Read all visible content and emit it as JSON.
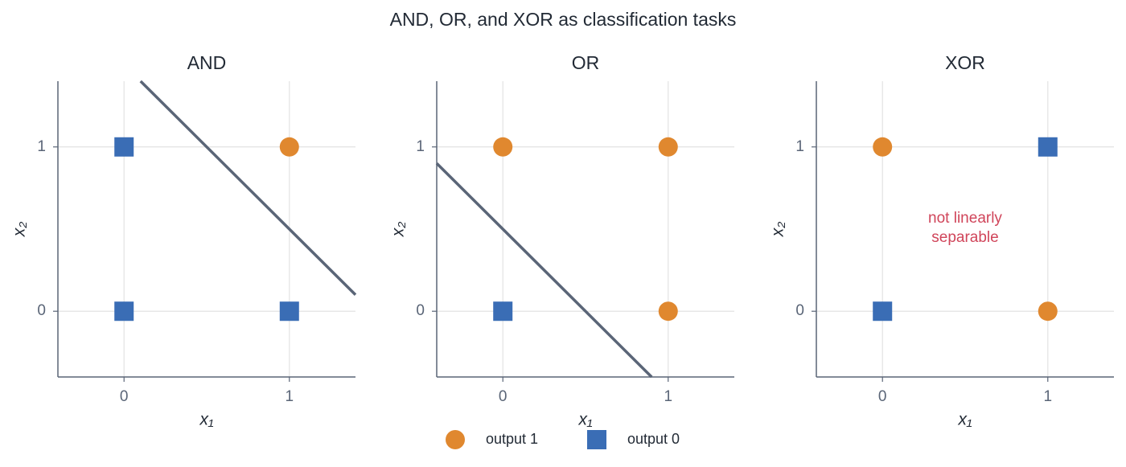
{
  "title": "AND, OR, and XOR as classification tasks",
  "chart_data": [
    {
      "type": "scatter",
      "title": "AND",
      "xlabel": "x₁",
      "ylabel": "x₂",
      "xlim": [
        -0.4,
        1.4
      ],
      "ylim": [
        -0.4,
        1.4
      ],
      "xticks": [
        0,
        1
      ],
      "yticks": [
        0,
        1
      ],
      "grid": true,
      "series": [
        {
          "name": "output 1",
          "color": "#e0882f",
          "marker": "circle",
          "x": [
            1
          ],
          "y": [
            1
          ]
        },
        {
          "name": "output 0",
          "color": "#3a6db5",
          "marker": "square",
          "x": [
            0,
            0,
            1
          ],
          "y": [
            0,
            1,
            0
          ]
        }
      ],
      "boundary": {
        "color": "#5a6577",
        "x": [
          0.1,
          1.4
        ],
        "y": [
          1.4,
          0.1
        ]
      }
    },
    {
      "type": "scatter",
      "title": "OR",
      "xlabel": "x₁",
      "ylabel": "x₂",
      "xlim": [
        -0.4,
        1.4
      ],
      "ylim": [
        -0.4,
        1.4
      ],
      "xticks": [
        0,
        1
      ],
      "yticks": [
        0,
        1
      ],
      "grid": true,
      "series": [
        {
          "name": "output 1",
          "color": "#e0882f",
          "marker": "circle",
          "x": [
            0,
            1,
            1
          ],
          "y": [
            1,
            0,
            1
          ]
        },
        {
          "name": "output 0",
          "color": "#3a6db5",
          "marker": "square",
          "x": [
            0
          ],
          "y": [
            0
          ]
        }
      ],
      "boundary": {
        "color": "#5a6577",
        "x": [
          -0.4,
          0.9
        ],
        "y": [
          0.9,
          -0.4
        ]
      }
    },
    {
      "type": "scatter",
      "title": "XOR",
      "xlabel": "x₁",
      "ylabel": "x₂",
      "xlim": [
        -0.4,
        1.4
      ],
      "ylim": [
        -0.4,
        1.4
      ],
      "xticks": [
        0,
        1
      ],
      "yticks": [
        0,
        1
      ],
      "grid": true,
      "series": [
        {
          "name": "output 1",
          "color": "#e0882f",
          "marker": "circle",
          "x": [
            0,
            1
          ],
          "y": [
            1,
            0
          ]
        },
        {
          "name": "output 0",
          "color": "#3a6db5",
          "marker": "square",
          "x": [
            0,
            1
          ],
          "y": [
            0,
            1
          ]
        }
      ],
      "annotation": [
        "not linearly",
        "separable"
      ]
    }
  ]
}
